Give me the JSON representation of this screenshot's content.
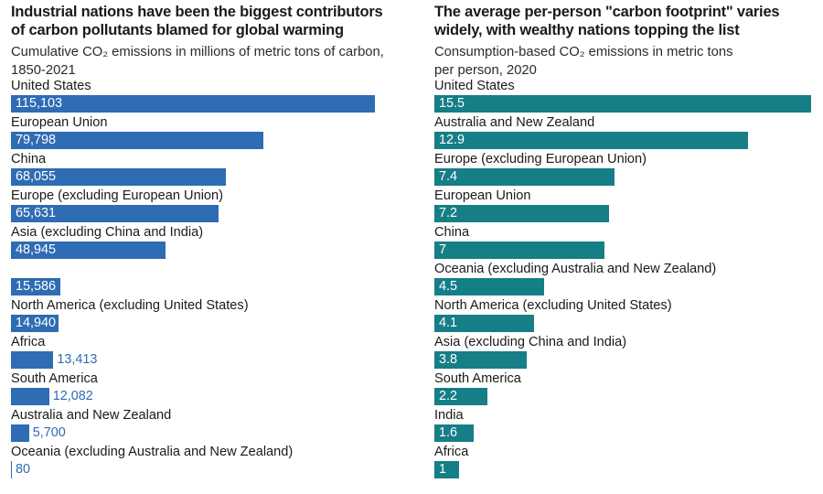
{
  "colors": {
    "left_bar": "#2e6cb3",
    "right_bar": "#157e87",
    "title_text": "#1a1a1a",
    "subtitle_text": "#2b2b2b",
    "inside_value_text": "#ffffff",
    "background": "#ffffff"
  },
  "chart_data": [
    {
      "type": "bar",
      "orientation": "horizontal",
      "title": "Industrial nations have been the biggest contributors\nof carbon pollutants blamed for global warming",
      "subtitle": "Cumulative CO₂ emissions in millions of metric tons of carbon,\n1850-2021",
      "xlabel": "",
      "ylabel": "",
      "xlim": [
        0,
        115103
      ],
      "grid": false,
      "legend": false,
      "bar_color": "#2e6cb3",
      "categories": [
        "United States",
        "European Union",
        "China",
        "Europe (excluding European Union)",
        "Asia (excluding China and India)",
        "",
        "North America (excluding United States)",
        "Africa",
        "South America",
        "Australia and New Zealand",
        "Oceania (excluding Australia and New Zealand)"
      ],
      "values": [
        115103,
        79798,
        68055,
        65631,
        48945,
        15586,
        14940,
        13413,
        12082,
        5700,
        80
      ],
      "value_labels": [
        "115,103",
        "79,798",
        "68,055",
        "65,631",
        "48,945",
        "15,586",
        "14,940",
        "13,413",
        "12,082",
        "5,700",
        "80"
      ],
      "value_inside": [
        true,
        true,
        true,
        true,
        true,
        true,
        true,
        false,
        false,
        false,
        false
      ]
    },
    {
      "type": "bar",
      "orientation": "horizontal",
      "title": "The average per-person \"carbon footprint\" varies\nwidely, with wealthy nations topping the list",
      "subtitle": "Consumption-based CO₂ emissions in metric tons\nper person, 2020",
      "xlabel": "",
      "ylabel": "",
      "xlim": [
        0,
        15.5
      ],
      "grid": false,
      "legend": false,
      "bar_color": "#157e87",
      "categories": [
        "United States",
        "Australia and New Zealand",
        "Europe (excluding European Union)",
        "European Union",
        "China",
        "Oceania (excluding Australia and New Zealand)",
        "North America (excluding United States)",
        "Asia (excluding China and India)",
        "South America",
        "India",
        "Africa"
      ],
      "values": [
        15.5,
        12.9,
        7.4,
        7.2,
        7,
        4.5,
        4.1,
        3.8,
        2.2,
        1.6,
        1
      ],
      "value_labels": [
        "15.5",
        "12.9",
        "7.4",
        "7.2",
        "7",
        "4.5",
        "4.1",
        "3.8",
        "2.2",
        "1.6",
        "1"
      ],
      "value_inside": [
        true,
        true,
        true,
        true,
        true,
        true,
        true,
        true,
        true,
        true,
        true
      ]
    }
  ]
}
